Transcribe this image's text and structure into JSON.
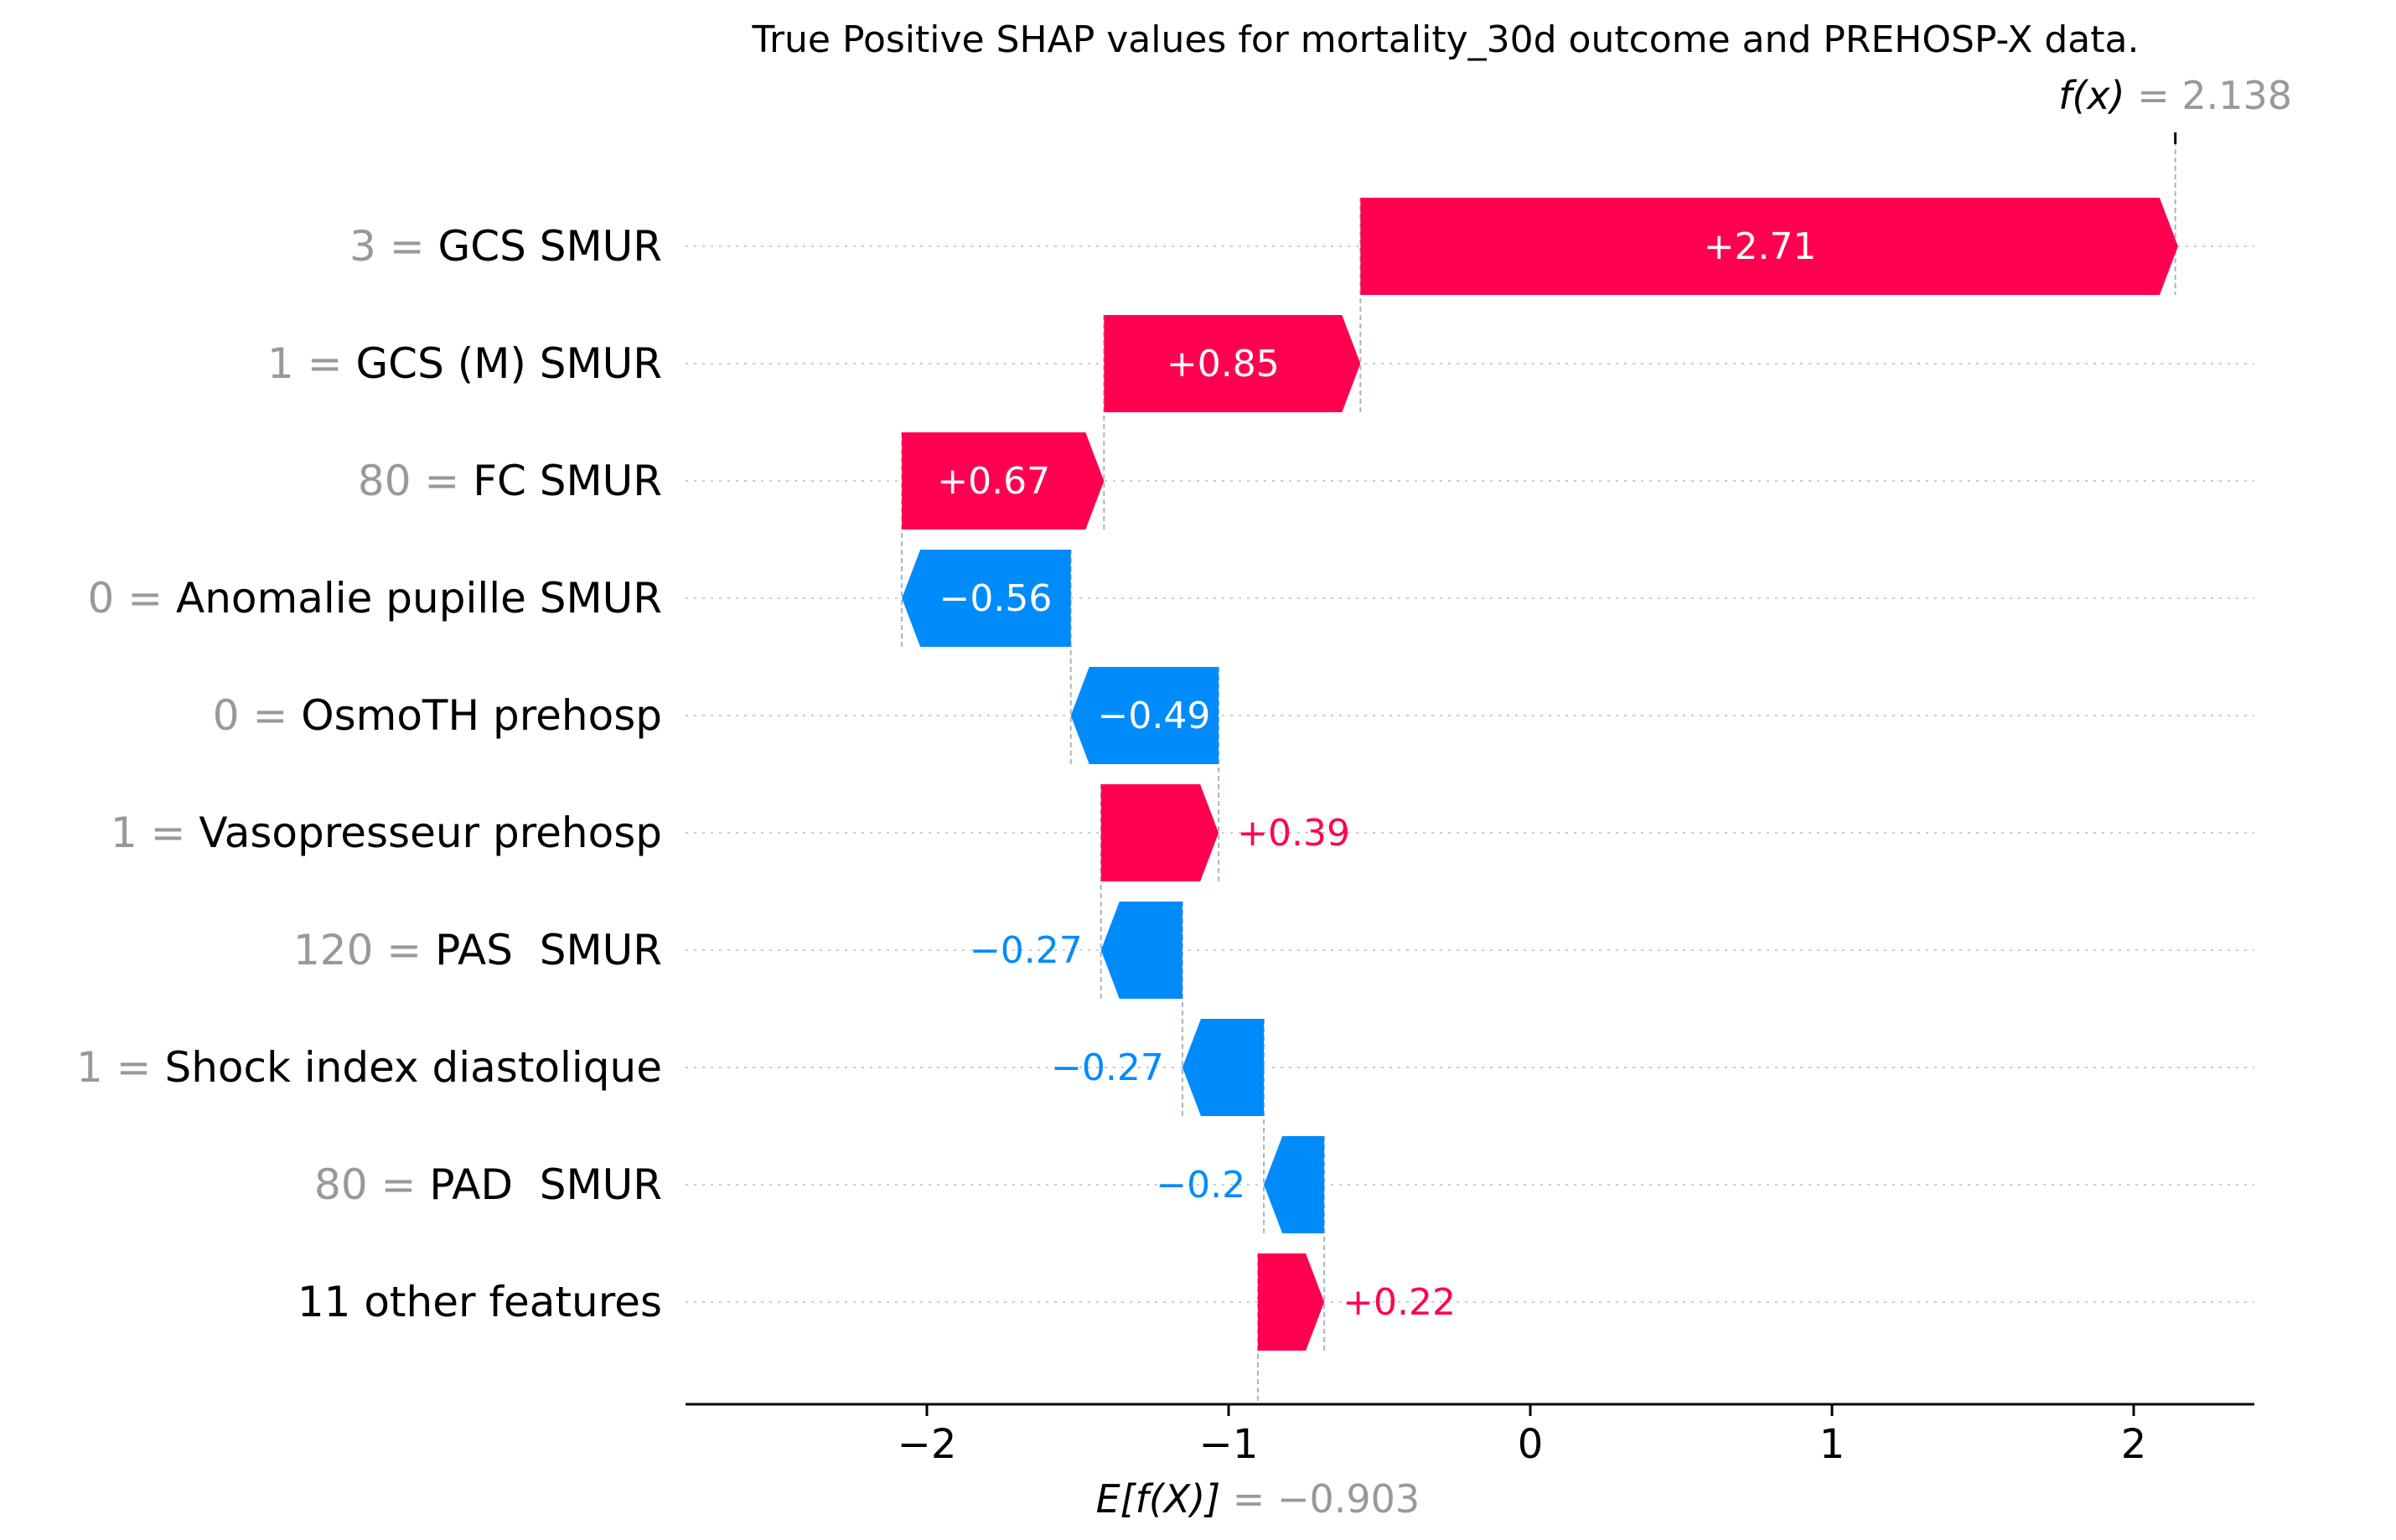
{
  "chart_data": {
    "type": "waterfall",
    "title": "True Positive SHAP values for mortality_30d outcome and PREHOSP-X data.",
    "fx_label": "f(x)",
    "fx_value": "2.138",
    "fx": 2.138,
    "base_label": "E[f(X)]",
    "base_value_text": "−0.903",
    "base": -0.903,
    "xlim": [
      -2.8,
      2.4
    ],
    "xticks": [
      {
        "value": -2,
        "label": "−2"
      },
      {
        "value": -1,
        "label": "−1"
      },
      {
        "value": 0,
        "label": "0"
      },
      {
        "value": 1,
        "label": "1"
      },
      {
        "value": 2,
        "label": "2"
      }
    ],
    "features": [
      {
        "value_text": "3",
        "name": "GCS SMUR",
        "shap": 2.71,
        "label": "+2.71"
      },
      {
        "value_text": "1",
        "name": "GCS (M) SMUR",
        "shap": 0.85,
        "label": "+0.85"
      },
      {
        "value_text": "80",
        "name": "FC SMUR",
        "shap": 0.67,
        "label": "+0.67"
      },
      {
        "value_text": "0",
        "name": "Anomalie pupille SMUR",
        "shap": -0.56,
        "label": "−0.56"
      },
      {
        "value_text": "0",
        "name": "OsmoTH prehosp",
        "shap": -0.49,
        "label": "−0.49"
      },
      {
        "value_text": "1",
        "name": "Vasopresseur prehosp",
        "shap": 0.39,
        "label": "+0.39"
      },
      {
        "value_text": "120",
        "name": "PAS  SMUR",
        "shap": -0.27,
        "label": "−0.27"
      },
      {
        "value_text": "1",
        "name": "Shock index diastolique",
        "shap": -0.27,
        "label": "−0.27"
      },
      {
        "value_text": "80",
        "name": "PAD  SMUR",
        "shap": -0.2,
        "label": "−0.2"
      },
      {
        "value_text": "",
        "name": "11 other features",
        "shap": 0.22,
        "label": "+0.22"
      }
    ],
    "colors": {
      "positive": "#ff0051",
      "negative": "#008bfb",
      "gray_text": "#999999",
      "axis": "#000000",
      "dotted": "#cccccc"
    }
  }
}
